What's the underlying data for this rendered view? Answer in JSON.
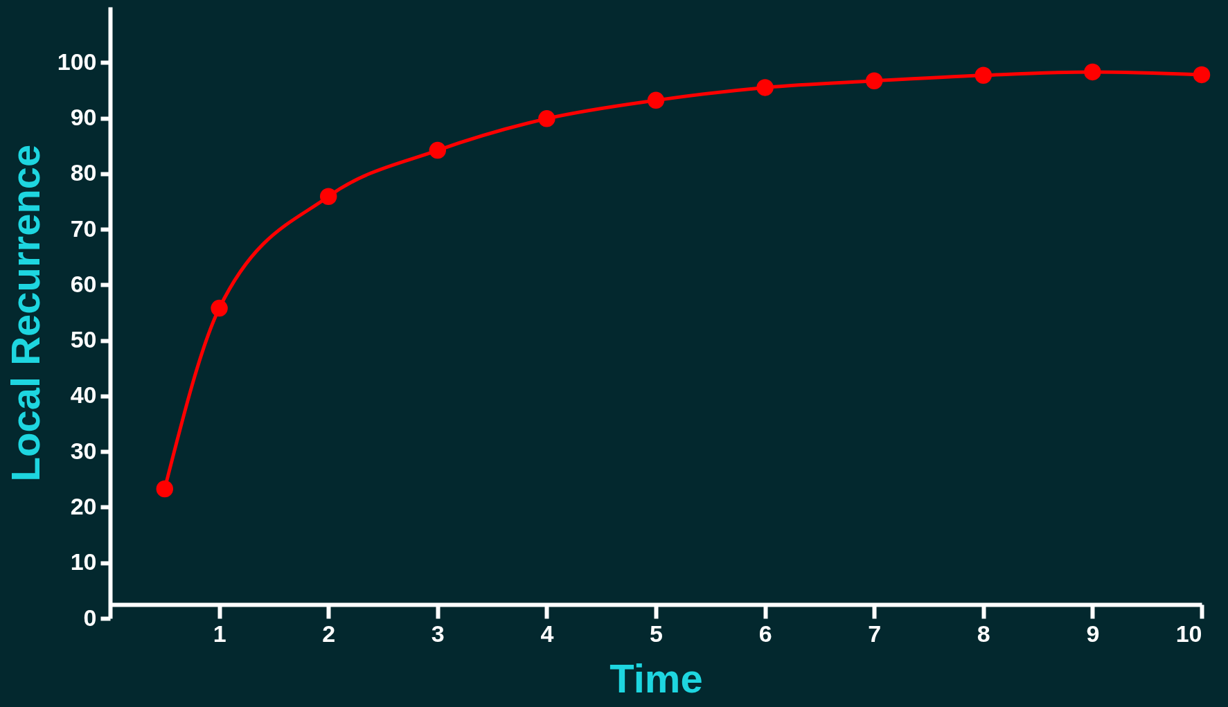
{
  "chart_data": {
    "type": "line",
    "xlabel": "Time",
    "ylabel": "Local Recurrence",
    "x": [
      0.5,
      1,
      2,
      3,
      4,
      5,
      6,
      7,
      8,
      9,
      10
    ],
    "series": [
      {
        "color": "#ff0000",
        "values": [
          23.3,
          55.8,
          75.9,
          84.2,
          89.9,
          93.2,
          95.5,
          96.7,
          97.7,
          98.3,
          97.8
        ]
      }
    ],
    "xlim": [
      0,
      10
    ],
    "xticks": [
      1,
      2,
      3,
      4,
      5,
      6,
      7,
      8,
      9,
      10
    ],
    "ylim": [
      0,
      110
    ],
    "yticks": [
      0,
      10,
      20,
      30,
      40,
      50,
      60,
      70,
      80,
      90,
      100
    ],
    "marker": "circle",
    "grid": false,
    "legend": false
  }
}
